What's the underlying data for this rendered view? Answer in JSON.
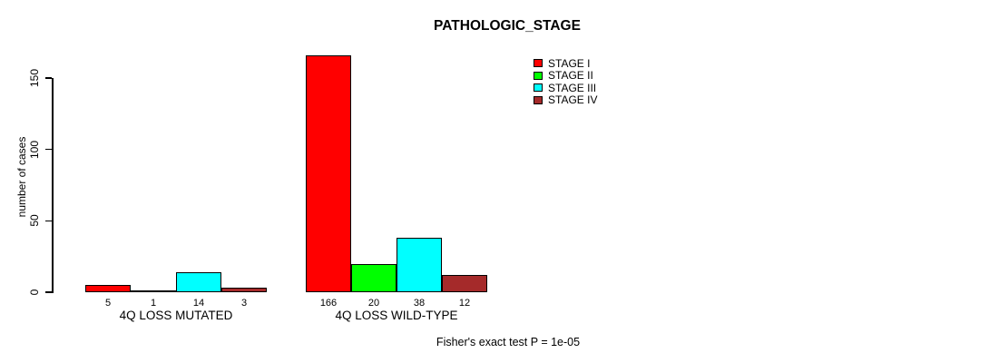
{
  "title": "PATHOLOGIC_STAGE",
  "y_axis": {
    "label": "number of cases",
    "tick_labels": [
      "0",
      "50",
      "100",
      "150"
    ]
  },
  "legend": {
    "items": [
      {
        "label": "STAGE I",
        "color": "#FF0000"
      },
      {
        "label": "STAGE II",
        "color": "#00FF00"
      },
      {
        "label": "STAGE III",
        "color": "#00FFFF"
      },
      {
        "label": "STAGE IV",
        "color": "#A52A2A"
      }
    ]
  },
  "footer": "Fisher's exact test P = 1e-05",
  "chart_data": {
    "type": "bar",
    "title": "PATHOLOGIC_STAGE",
    "xlabel": "",
    "ylabel": "number of cases",
    "ylim": [
      0,
      170
    ],
    "yticks": [
      0,
      50,
      100,
      150
    ],
    "grid": false,
    "legend_position": "top-right",
    "bar_value_labels_shown": true,
    "categories": [
      "4Q LOSS MUTATED",
      "4Q LOSS WILD-TYPE"
    ],
    "series": [
      {
        "name": "STAGE I",
        "color": "#FF0000",
        "values": [
          5,
          166
        ]
      },
      {
        "name": "STAGE II",
        "color": "#00FF00",
        "values": [
          1,
          20
        ]
      },
      {
        "name": "STAGE III",
        "color": "#00FFFF",
        "values": [
          14,
          38
        ]
      },
      {
        "name": "STAGE IV",
        "color": "#A52A2A",
        "values": [
          3,
          12
        ]
      }
    ],
    "annotation": "Fisher's exact test P = 1e-05"
  }
}
